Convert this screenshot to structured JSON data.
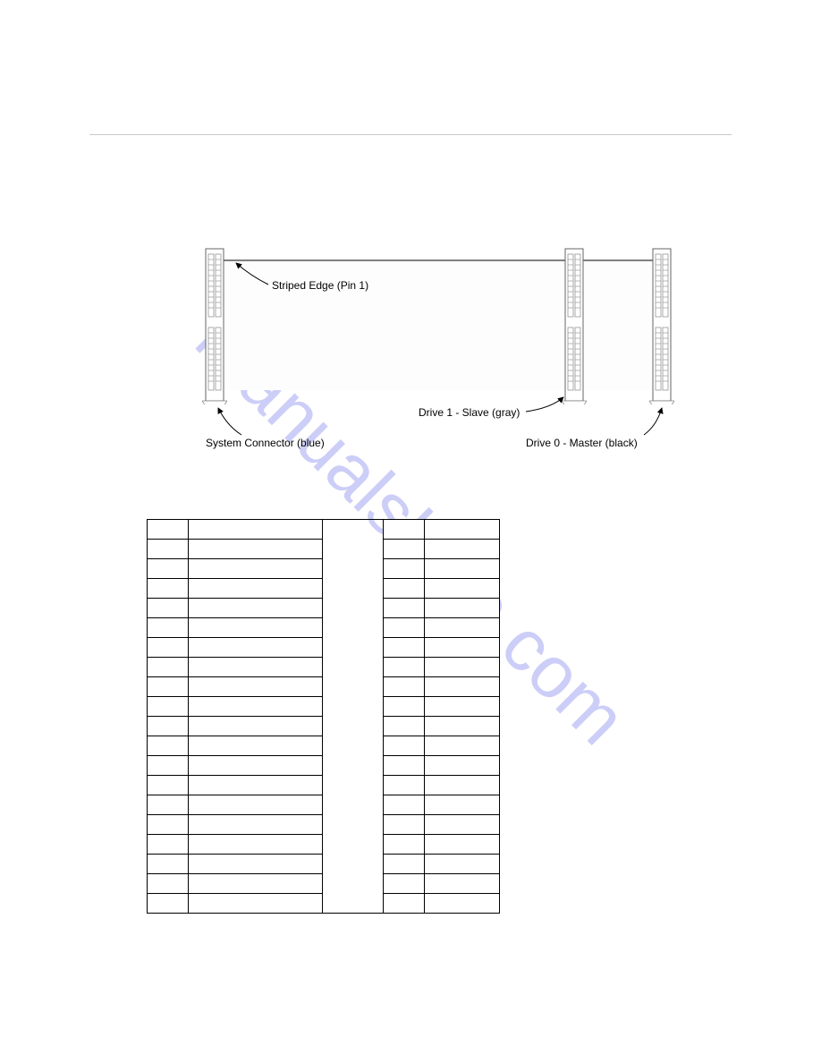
{
  "watermark_text": "manualshive.com",
  "figure": {
    "labels": {
      "striped_edge": "Striped Edge (Pin 1)",
      "system_connector": "System Connector (blue)",
      "drive1_slave": "Drive 1 - Slave (gray)",
      "drive0_master": "Drive 0 - Master (black)"
    }
  },
  "pin_rows": [
    {
      "l_pin": "",
      "l_sig": "",
      "r_pin": "",
      "r_sig": ""
    },
    {
      "l_pin": "",
      "l_sig": "",
      "r_pin": "",
      "r_sig": ""
    },
    {
      "l_pin": "",
      "l_sig": "",
      "r_pin": "",
      "r_sig": ""
    },
    {
      "l_pin": "",
      "l_sig": "",
      "r_pin": "",
      "r_sig": ""
    },
    {
      "l_pin": "",
      "l_sig": "",
      "r_pin": "",
      "r_sig": ""
    },
    {
      "l_pin": "",
      "l_sig": "",
      "r_pin": "",
      "r_sig": ""
    },
    {
      "l_pin": "",
      "l_sig": "",
      "r_pin": "",
      "r_sig": ""
    },
    {
      "l_pin": "",
      "l_sig": "",
      "r_pin": "",
      "r_sig": ""
    },
    {
      "l_pin": "",
      "l_sig": "",
      "r_pin": "",
      "r_sig": ""
    },
    {
      "l_pin": "",
      "l_sig": "",
      "r_pin": "",
      "r_sig": ""
    },
    {
      "l_pin": "",
      "l_sig": "",
      "r_pin": "",
      "r_sig": ""
    },
    {
      "l_pin": "",
      "l_sig": "",
      "r_pin": "",
      "r_sig": ""
    },
    {
      "l_pin": "",
      "l_sig": "",
      "r_pin": "",
      "r_sig": ""
    },
    {
      "l_pin": "",
      "l_sig": "",
      "r_pin": "",
      "r_sig": ""
    },
    {
      "l_pin": "",
      "l_sig": "",
      "r_pin": "",
      "r_sig": ""
    },
    {
      "l_pin": "",
      "l_sig": "",
      "r_pin": "",
      "r_sig": ""
    },
    {
      "l_pin": "",
      "l_sig": "",
      "r_pin": "",
      "r_sig": ""
    },
    {
      "l_pin": "",
      "l_sig": "",
      "r_pin": "",
      "r_sig": ""
    },
    {
      "l_pin": "",
      "l_sig": "",
      "r_pin": "",
      "r_sig": ""
    },
    {
      "l_pin": "",
      "l_sig": "",
      "r_pin": "",
      "r_sig": ""
    }
  ]
}
